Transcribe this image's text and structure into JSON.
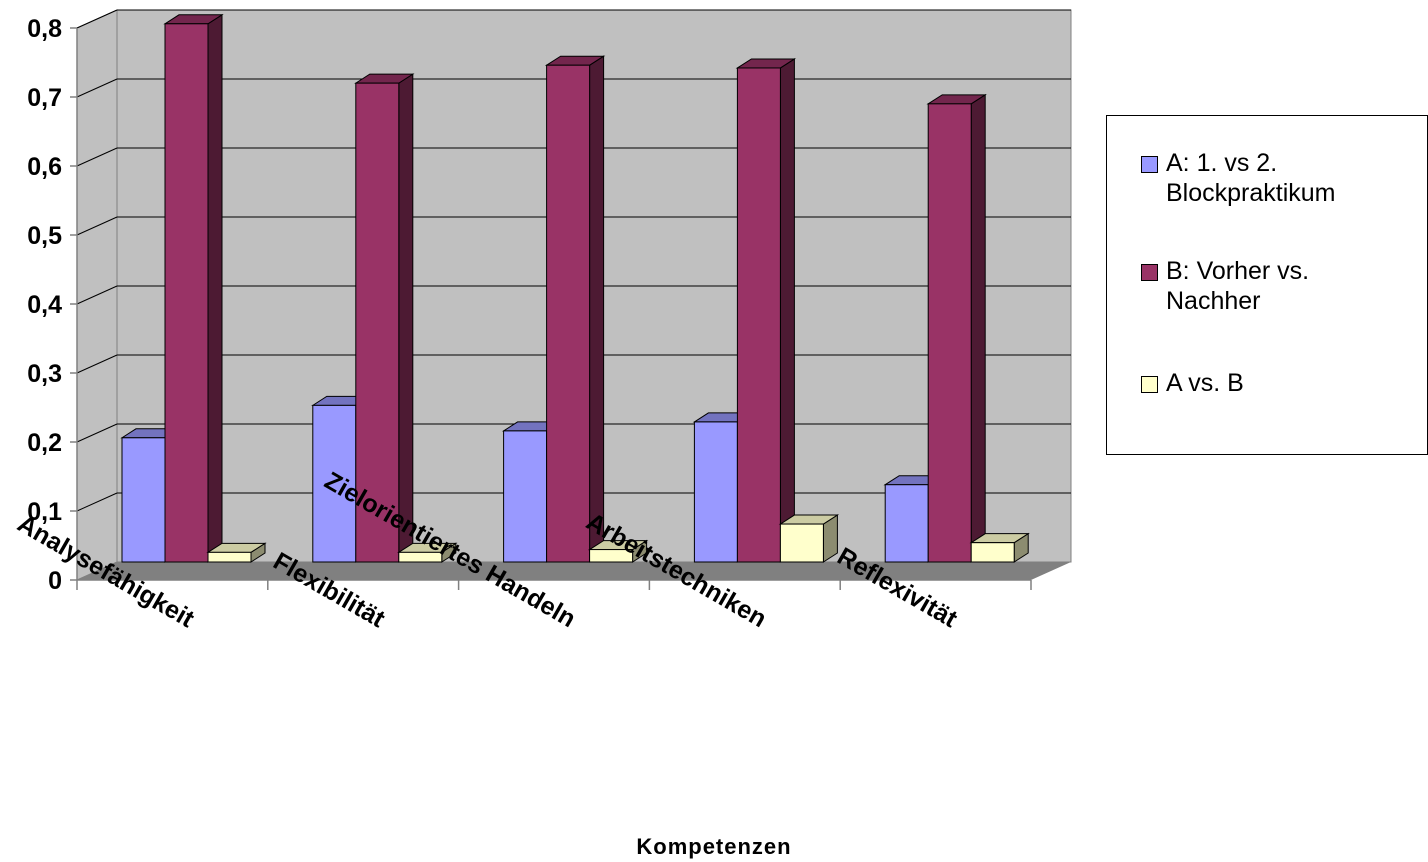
{
  "chart_data": {
    "type": "bar",
    "title": "",
    "xlabel": "Kompetenzen",
    "ylabel": "",
    "categories": [
      "Analysefähigkeit",
      "Flexibilität",
      "Zielorientiertes Handeln",
      "Arbeitstechniken",
      "Reflexivität"
    ],
    "ylim": [
      0,
      0.8
    ],
    "yticks": [
      "0",
      "0,1",
      "0,2",
      "0,3",
      "0,4",
      "0,5",
      "0,6",
      "0,7",
      "0,8"
    ],
    "grid": true,
    "legend_position": "right",
    "series": [
      {
        "name": "A: 1. vs 2. Blockpraktikum",
        "values": [
          0.18,
          0.227,
          0.19,
          0.203,
          0.112
        ],
        "color": "#9999ff"
      },
      {
        "name": "B: Vorher vs. Nachher",
        "values": [
          0.78,
          0.694,
          0.72,
          0.716,
          0.664
        ],
        "color": "#993366"
      },
      {
        "name": "A vs. B",
        "values": [
          0.014,
          0.014,
          0.018,
          0.055,
          0.028
        ],
        "color": "#ffffcc"
      }
    ]
  },
  "legend": {
    "items": [
      {
        "label": "A: 1. vs 2.\nBlockpraktikum",
        "color": "#9999ff"
      },
      {
        "label": "B: Vorher vs.\nNachher",
        "color": "#993366"
      },
      {
        "label": "A vs. B",
        "color": "#ffffcc"
      }
    ]
  }
}
